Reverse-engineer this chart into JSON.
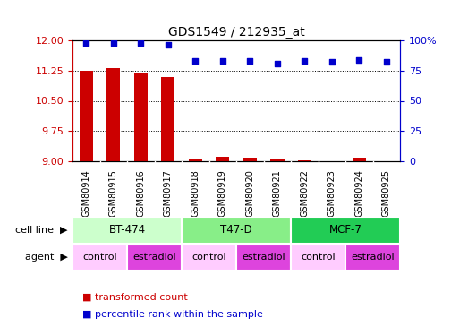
{
  "title": "GDS1549 / 212935_at",
  "samples": [
    "GSM80914",
    "GSM80915",
    "GSM80916",
    "GSM80917",
    "GSM80918",
    "GSM80919",
    "GSM80920",
    "GSM80921",
    "GSM80922",
    "GSM80923",
    "GSM80924",
    "GSM80925"
  ],
  "transformed_count": [
    11.25,
    11.31,
    11.19,
    11.08,
    9.07,
    9.12,
    9.08,
    9.04,
    9.03,
    9.01,
    9.08,
    9.01
  ],
  "percentile_rank": [
    98,
    98,
    98,
    96,
    83,
    83,
    83,
    81,
    83,
    82,
    84,
    82
  ],
  "ylim_left": [
    9,
    12
  ],
  "ylim_right": [
    0,
    100
  ],
  "yticks_left": [
    9,
    9.75,
    10.5,
    11.25,
    12
  ],
  "yticks_right": [
    0,
    25,
    50,
    75,
    100
  ],
  "bar_color": "#cc0000",
  "dot_color": "#0000cc",
  "cell_lines": [
    {
      "label": "BT-474",
      "start": 0,
      "end": 4,
      "color": "#ccffcc"
    },
    {
      "label": "T47-D",
      "start": 4,
      "end": 8,
      "color": "#88ee88"
    },
    {
      "label": "MCF-7",
      "start": 8,
      "end": 12,
      "color": "#22cc55"
    }
  ],
  "agents": [
    {
      "label": "control",
      "start": 0,
      "end": 2,
      "color": "#ffccff"
    },
    {
      "label": "estradiol",
      "start": 2,
      "end": 4,
      "color": "#dd44dd"
    },
    {
      "label": "control",
      "start": 4,
      "end": 6,
      "color": "#ffccff"
    },
    {
      "label": "estradiol",
      "start": 6,
      "end": 8,
      "color": "#dd44dd"
    },
    {
      "label": "control",
      "start": 8,
      "end": 10,
      "color": "#ffccff"
    },
    {
      "label": "estradiol",
      "start": 10,
      "end": 12,
      "color": "#dd44dd"
    }
  ],
  "cell_line_label": "cell line",
  "agent_label": "agent",
  "tick_color_left": "#cc0000",
  "tick_color_right": "#0000cc",
  "background_color": "#ffffff",
  "sample_bg_color": "#cccccc",
  "legend_red_label": "transformed count",
  "legend_blue_label": "percentile rank within the sample"
}
